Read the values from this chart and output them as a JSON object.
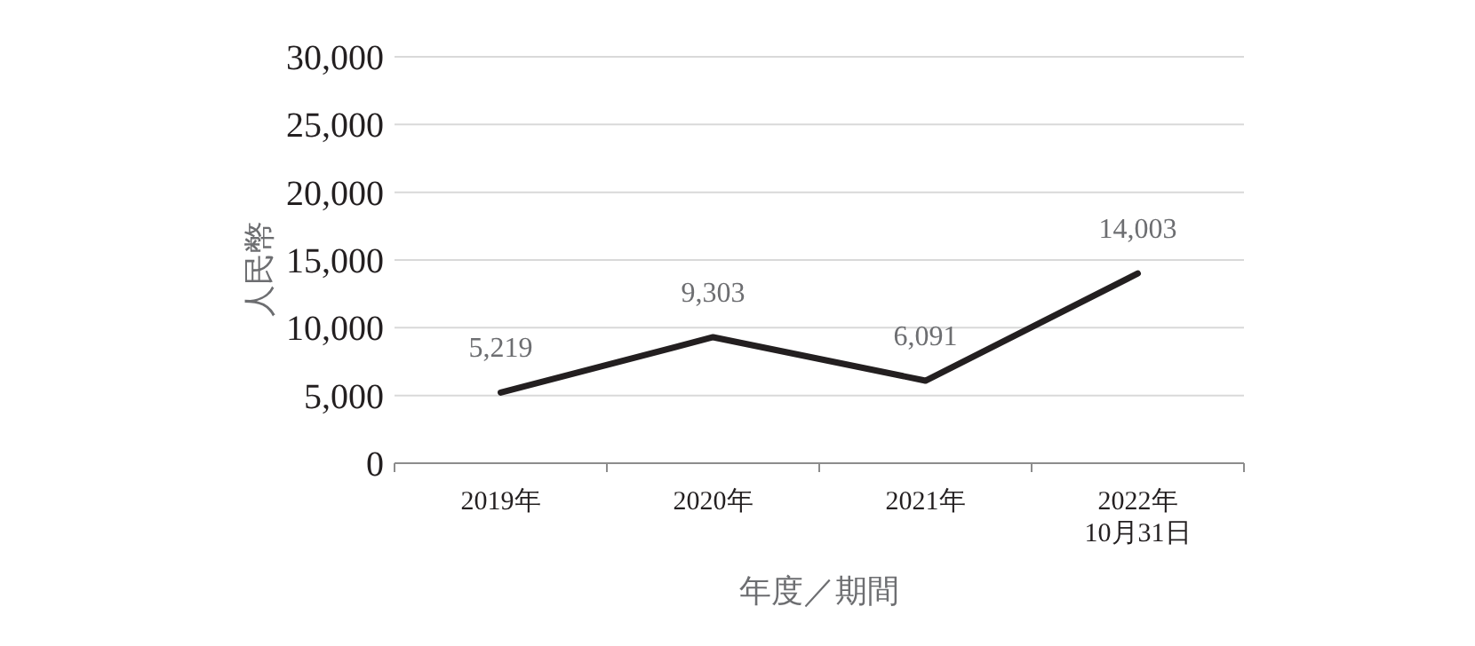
{
  "chart_data": {
    "type": "line",
    "xlabel": "年度／期間",
    "ylabel": "人民幣",
    "categories": [
      "2019年",
      "2020年",
      "2021年",
      "2022年\n10月31日"
    ],
    "series": [
      {
        "color": "#231f20",
        "values": [
          5219,
          9303,
          6091,
          14003
        ],
        "value_labels": [
          "5,219",
          "9,303",
          "6,091",
          "14,003"
        ]
      }
    ],
    "ylim": [
      0,
      30000
    ],
    "yticks": [
      {
        "value": 0,
        "label": "0"
      },
      {
        "value": 5000,
        "label": "5,000"
      },
      {
        "value": 10000,
        "label": "10,000"
      },
      {
        "value": 15000,
        "label": "15,000"
      },
      {
        "value": 20000,
        "label": "20,000"
      },
      {
        "value": 25000,
        "label": "25,000"
      },
      {
        "value": 30000,
        "label": "30,000"
      }
    ],
    "grid": "y",
    "marker": "none",
    "line_style": "solid"
  }
}
